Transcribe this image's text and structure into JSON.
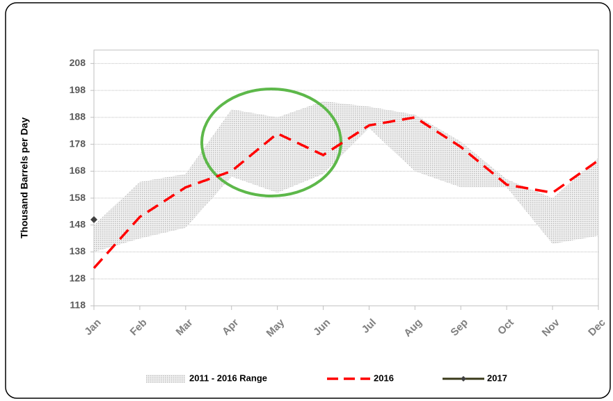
{
  "chart_data": {
    "type": "line",
    "y_label": "Thousand Barrels per Day",
    "categories": [
      "Jan",
      "Feb",
      "Mar",
      "Apr",
      "May",
      "Jun",
      "Jul",
      "Aug",
      "Sep",
      "Oct",
      "Nov",
      "Dec"
    ],
    "range": {
      "name": "2011 - 2016 Range",
      "color": "#c8c8c8",
      "low": [
        138,
        143,
        147,
        166,
        160,
        167,
        184,
        168,
        162,
        162,
        141,
        144
      ],
      "high": [
        148,
        164,
        167,
        191,
        188,
        194,
        192,
        189,
        179,
        165,
        158,
        173
      ]
    },
    "series": [
      {
        "name": "2016",
        "color": "#ff0000",
        "dashed": true,
        "values": [
          132,
          151,
          162,
          168,
          182,
          174,
          185,
          188,
          177,
          163,
          160,
          172
        ]
      },
      {
        "name": "2017",
        "color": "#3a3a1a",
        "marker_color": "#404040",
        "values": [
          150,
          null,
          null,
          null,
          null,
          null,
          null,
          null,
          null,
          null,
          null,
          null
        ]
      }
    ],
    "ylim": [
      118,
      213
    ],
    "yticks": [
      118,
      128,
      138,
      148,
      158,
      168,
      178,
      188,
      198,
      208
    ],
    "grid": true
  }
}
